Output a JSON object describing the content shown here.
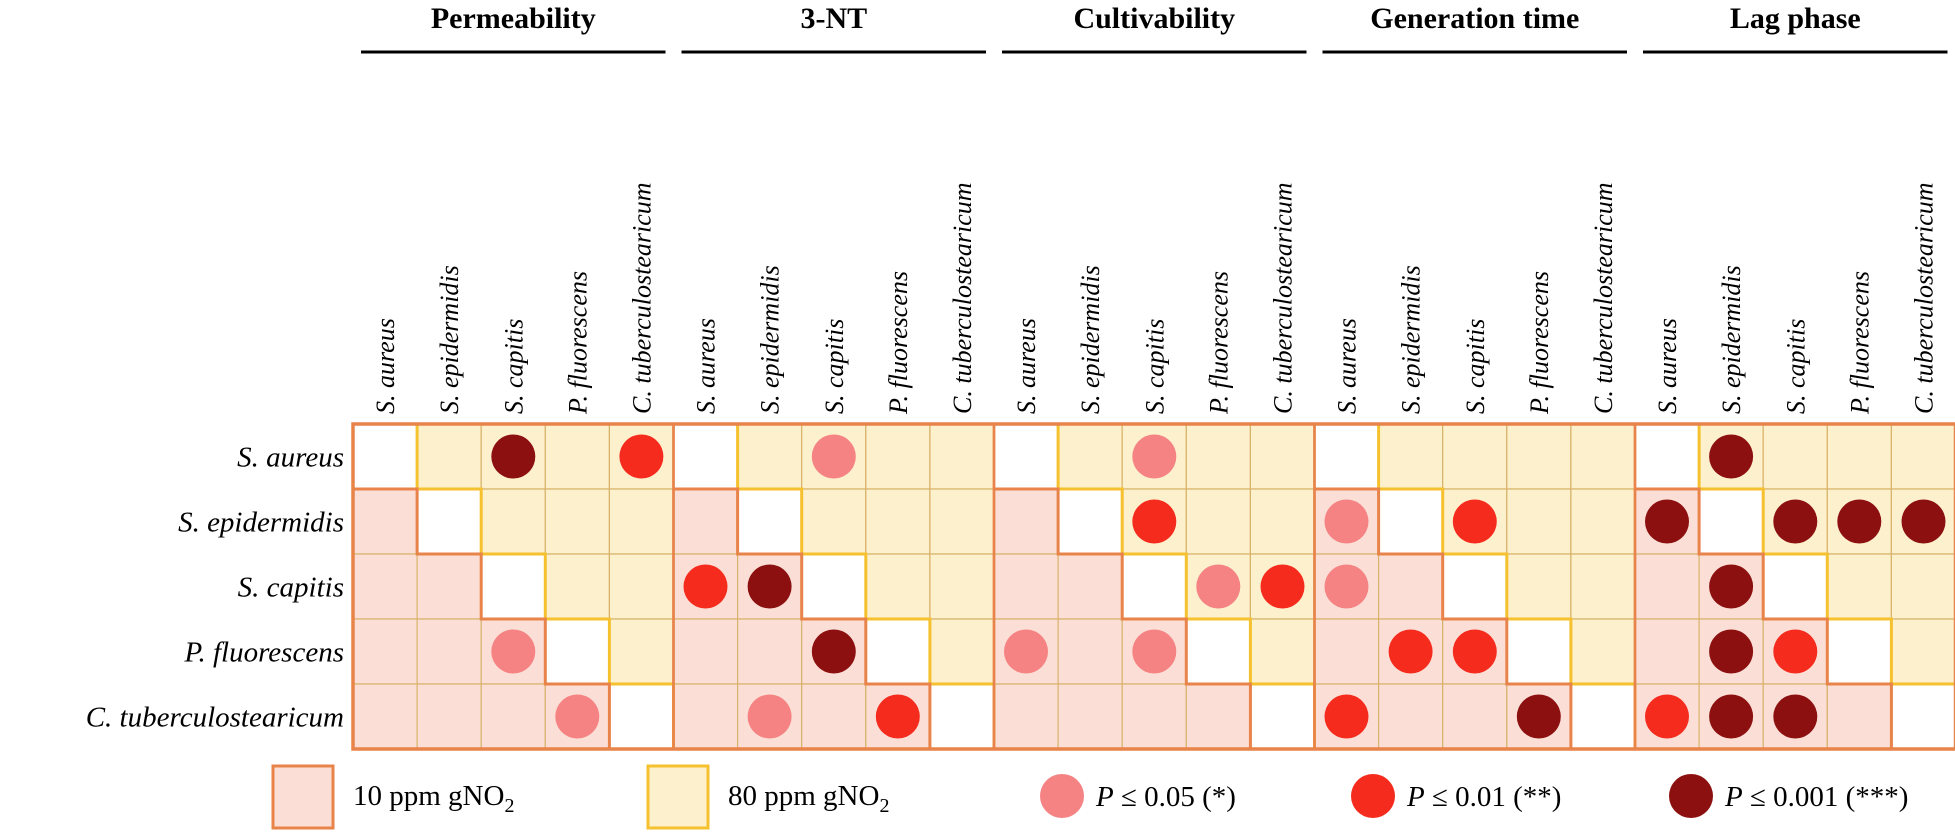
{
  "chart_data": {
    "type": "heatmap",
    "panels": [
      {
        "title": "Permeability",
        "significance": [
          [
            null,
            null,
            "***",
            null,
            "**"
          ],
          [
            null,
            null,
            null,
            null,
            null
          ],
          [
            null,
            null,
            null,
            null,
            null
          ],
          [
            null,
            null,
            "*",
            null,
            null
          ],
          [
            null,
            null,
            null,
            "*",
            null
          ]
        ]
      },
      {
        "title": "3-NT",
        "significance": [
          [
            null,
            null,
            "*",
            null,
            null
          ],
          [
            null,
            null,
            null,
            null,
            null
          ],
          [
            "**",
            "***",
            null,
            null,
            null
          ],
          [
            null,
            null,
            "***",
            null,
            null
          ],
          [
            null,
            "*",
            null,
            "**",
            null
          ]
        ]
      },
      {
        "title": "Cultivability",
        "significance": [
          [
            null,
            null,
            "*",
            null,
            null
          ],
          [
            null,
            null,
            "**",
            null,
            null
          ],
          [
            null,
            null,
            null,
            "*",
            "**"
          ],
          [
            "*",
            null,
            "*",
            null,
            null
          ],
          [
            null,
            null,
            null,
            null,
            null
          ]
        ]
      },
      {
        "title": "Generation time",
        "significance": [
          [
            null,
            null,
            null,
            null,
            null
          ],
          [
            "*",
            null,
            "**",
            null,
            null
          ],
          [
            "*",
            null,
            null,
            null,
            null
          ],
          [
            null,
            "**",
            "**",
            null,
            null
          ],
          [
            "**",
            null,
            null,
            "***",
            null
          ]
        ]
      },
      {
        "title": "Lag phase",
        "significance": [
          [
            null,
            "***",
            null,
            null,
            null
          ],
          [
            "***",
            null,
            "***",
            "***",
            "***"
          ],
          [
            null,
            "***",
            null,
            null,
            null
          ],
          [
            null,
            "***",
            "**",
            null,
            null
          ],
          [
            "**",
            "***",
            "***",
            null,
            null
          ]
        ]
      }
    ],
    "column_species": [
      "S. aureus",
      "S. epidermidis",
      "S. capitis",
      "P. fluorescens",
      "C. tuberculostearicum"
    ],
    "row_species": [
      "S. aureus",
      "S. epidermidis",
      "S. capitis",
      "P. fluorescens",
      "C. tuberculostearicum"
    ],
    "triangle_meaning": {
      "upper": "80 ppm gNO2",
      "lower": "10 ppm gNO2",
      "diagonal": "self"
    },
    "legend": {
      "ppm10": {
        "label": "10 ppm gNO",
        "sub": "2"
      },
      "ppm80": {
        "label": "80 ppm gNO",
        "sub": "2"
      },
      "sig": [
        {
          "key": "*",
          "label": "P ≤ 0.05 (*)",
          "italic": "P",
          "rest": " ≤ 0.05 (*)"
        },
        {
          "key": "**",
          "label": "P ≤ 0.01 (**)",
          "italic": "P",
          "rest": " ≤ 0.01 (**)"
        },
        {
          "key": "***",
          "label": "P ≤ 0.001 (***)",
          "italic": "P",
          "rest": " ≤ 0.001 (***)"
        }
      ]
    },
    "colors": {
      "fill_10ppm": "#fbdfd6",
      "fill_80ppm": "#fdf0cc",
      "border_10ppm": "#e8834a",
      "border_80ppm": "#f5c12e",
      "grid_line": "#d8b26a",
      "p05": "#f58383",
      "p01": "#f52b1e",
      "p001": "#8c1010",
      "text": "#000000"
    }
  }
}
